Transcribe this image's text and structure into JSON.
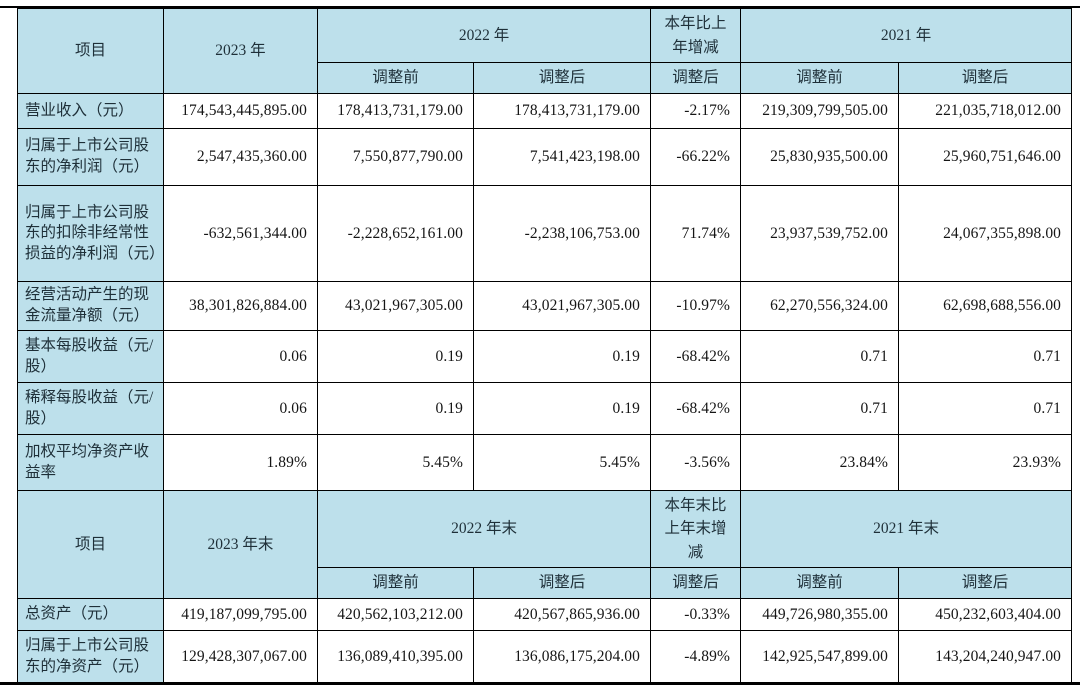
{
  "colors": {
    "header_bg": "#BDE0EB",
    "label_text": "#1e2f38",
    "number_text": "#151515",
    "border": "#000000"
  },
  "adjust": {
    "before": "调整前",
    "after": "调整后"
  },
  "section1": {
    "header": {
      "item": "项目",
      "y2023": "2023 年",
      "y2022": "2022 年",
      "change": "本年比上年增减",
      "y2021": "2021 年"
    },
    "rows": [
      [
        "营业收入（元）",
        "174,543,445,895.00",
        "178,413,731,179.00",
        "178,413,731,179.00",
        "-2.17%",
        "219,309,799,505.00",
        "221,035,718,012.00"
      ],
      [
        "归属于上市公司股东的净利润（元）",
        "2,547,435,360.00",
        "7,550,877,790.00",
        "7,541,423,198.00",
        "-66.22%",
        "25,830,935,500.00",
        "25,960,751,646.00"
      ],
      [
        "归属于上市公司股东的扣除非经常性损益的净利润（元）",
        "-632,561,344.00",
        "-2,228,652,161.00",
        "-2,238,106,753.00",
        "71.74%",
        "23,937,539,752.00",
        "24,067,355,898.00"
      ],
      [
        "经营活动产生的现金流量净额（元）",
        "38,301,826,884.00",
        "43,021,967,305.00",
        "43,021,967,305.00",
        "-10.97%",
        "62,270,556,324.00",
        "62,698,688,556.00"
      ],
      [
        "基本每股收益（元/股）",
        "0.06",
        "0.19",
        "0.19",
        "-68.42%",
        "0.71",
        "0.71"
      ],
      [
        "稀释每股收益（元/股）",
        "0.06",
        "0.19",
        "0.19",
        "-68.42%",
        "0.71",
        "0.71"
      ],
      [
        "加权平均净资产收益率",
        "1.89%",
        "5.45%",
        "5.45%",
        "-3.56%",
        "23.84%",
        "23.93%"
      ]
    ]
  },
  "section2": {
    "header": {
      "item": "项目",
      "y2023": "2023 年末",
      "y2022": "2022 年末",
      "change": "本年末比上年末增减",
      "y2021": "2021 年末"
    },
    "rows": [
      [
        "总资产（元）",
        "419,187,099,795.00",
        "420,562,103,212.00",
        "420,567,865,936.00",
        "-0.33%",
        "449,726,980,355.00",
        "450,232,603,404.00"
      ],
      [
        "归属于上市公司股东的净资产（元）",
        "129,428,307,067.00",
        "136,089,410,395.00",
        "136,086,175,204.00",
        "-4.89%",
        "142,925,547,899.00",
        "143,204,240,947.00"
      ]
    ]
  }
}
